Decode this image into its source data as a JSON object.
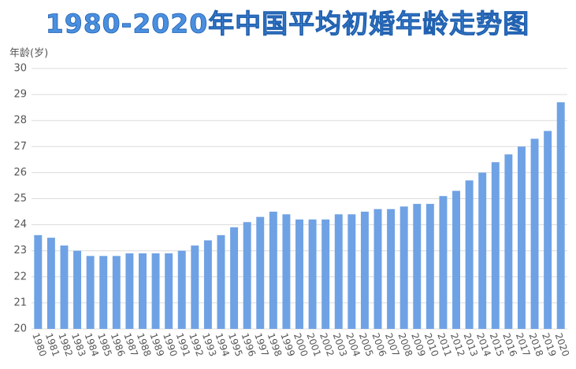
{
  "chart_data": {
    "type": "bar",
    "title": "1980-2020年中国平均初婚年龄走势图",
    "y_label": "年龄(岁)",
    "categories": [
      "1980",
      "1981",
      "1982",
      "1983",
      "1984",
      "1985",
      "1986",
      "1987",
      "1988",
      "1989",
      "1990",
      "1991",
      "1992",
      "1993",
      "1994",
      "1995",
      "1996",
      "1997",
      "1998",
      "1999",
      "2000",
      "2001",
      "2002",
      "2003",
      "2004",
      "2005",
      "2006",
      "2007",
      "2008",
      "2009",
      "2010",
      "2011",
      "2012",
      "2013",
      "2014",
      "2015",
      "2016",
      "2017",
      "2018",
      "2019",
      "2020"
    ],
    "values": [
      23.6,
      23.5,
      23.2,
      23.0,
      22.8,
      22.8,
      22.8,
      22.9,
      22.9,
      22.9,
      22.9,
      23.0,
      23.2,
      23.4,
      23.6,
      23.9,
      24.1,
      24.3,
      24.5,
      24.4,
      24.2,
      24.2,
      24.2,
      24.4,
      24.4,
      24.5,
      24.6,
      24.6,
      24.7,
      24.8,
      24.8,
      25.1,
      25.3,
      25.7,
      26.0,
      26.4,
      26.7,
      27.0,
      27.3,
      27.6,
      28.7
    ],
    "color": "#6fa2e4",
    "ylim": [
      20,
      30
    ],
    "yticks": [
      20,
      21,
      22,
      23,
      24,
      25,
      26,
      27,
      28,
      29,
      30
    ],
    "grid": true
  }
}
